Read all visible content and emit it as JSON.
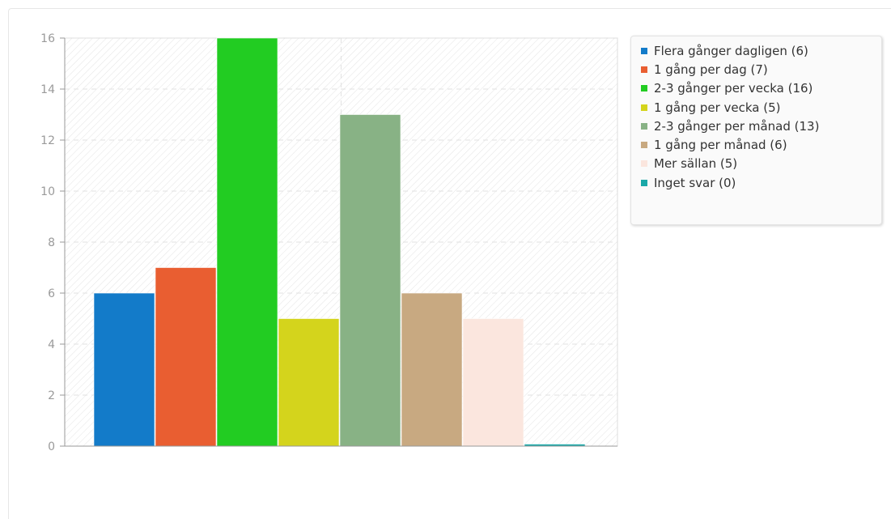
{
  "chart_data": {
    "type": "bar",
    "categories": [
      "Flera gånger dagligen",
      "1 gång per dag",
      "2-3 gånger per vecka",
      "1 gång per vecka",
      "2-3 gånger per månad",
      "1 gång per månad",
      "Mer sällan",
      "Inget svar"
    ],
    "values": [
      6,
      7,
      16,
      5,
      13,
      6,
      5,
      0
    ],
    "colors": [
      "#137bc9",
      "#e95e31",
      "#22cc22",
      "#d4d41c",
      "#88b285",
      "#c8a981",
      "#fbe6de",
      "#1aa8a8"
    ],
    "ylim": [
      0,
      16
    ],
    "yticks": [
      0,
      2,
      4,
      6,
      8,
      10,
      12,
      14,
      16
    ],
    "grid": true,
    "legend_position": "right",
    "legend": [
      "Flera gånger dagligen (6)",
      "1 gång per dag (7)",
      "2-3 gånger per vecka (16)",
      "1 gång per vecka (5)",
      "2-3 gånger per månad (13)",
      "1 gång per månad (6)",
      "Mer sällan (5)",
      "Inget svar (0)"
    ]
  }
}
